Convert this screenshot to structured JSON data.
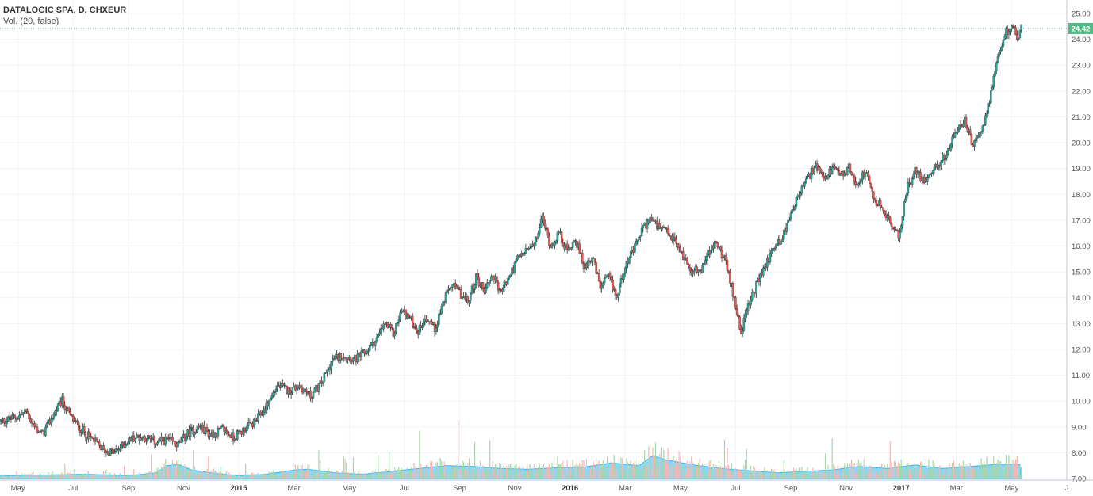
{
  "legend": {
    "title": "DATALOGIC SPA, D, CHXEUR",
    "volume": "Vol. (20, false)"
  },
  "colors": {
    "up": "#26a69a",
    "down": "#ef5350",
    "wick": "#333333",
    "grid": "#f0f3fa",
    "price_line": "#53b987",
    "vol_up": "#a5d6a7",
    "vol_down": "#f5b7b1",
    "vol_avg": "#29b6f6",
    "axis_text": "#555555"
  },
  "chart_data": {
    "type": "candlestick",
    "title": "DATALOGIC SPA, D, CHXEUR",
    "symbol": "DATALOGIC SPA",
    "interval": "D",
    "currency": "CHXEUR",
    "last_price": "24.42",
    "ylim": [
      7.0,
      25.0
    ],
    "y_ticks": [
      "7.00",
      "8.00",
      "9.00",
      "10.00",
      "11.00",
      "12.00",
      "13.00",
      "14.00",
      "15.00",
      "16.00",
      "17.00",
      "18.00",
      "19.00",
      "20.00",
      "21.00",
      "22.00",
      "23.00",
      "24.00",
      "25.00"
    ],
    "x_ticks": [
      {
        "label": "May",
        "t": 0.0
      },
      {
        "label": "Jul",
        "t": 2.0
      },
      {
        "label": "Sep",
        "t": 4.0
      },
      {
        "label": "Nov",
        "t": 6.0
      },
      {
        "label": "2015",
        "t": 8.0,
        "bold": true
      },
      {
        "label": "Mar",
        "t": 10.0
      },
      {
        "label": "May",
        "t": 12.0
      },
      {
        "label": "Jul",
        "t": 14.0
      },
      {
        "label": "Sep",
        "t": 16.0
      },
      {
        "label": "Nov",
        "t": 18.0
      },
      {
        "label": "2016",
        "t": 20.0,
        "bold": true
      },
      {
        "label": "Mar",
        "t": 22.0
      },
      {
        "label": "May",
        "t": 24.0
      },
      {
        "label": "Jul",
        "t": 26.0
      },
      {
        "label": "Sep",
        "t": 28.0
      },
      {
        "label": "Nov",
        "t": 30.0
      },
      {
        "label": "2017",
        "t": 32.0,
        "bold": true
      },
      {
        "label": "Mar",
        "t": 34.0
      },
      {
        "label": "May",
        "t": 36.0
      },
      {
        "label": "J",
        "t": 38.0
      }
    ],
    "x_range_months": [
      -0.65,
      38.0
    ],
    "price_path": [
      [
        -0.65,
        9.2
      ],
      [
        0.0,
        9.4
      ],
      [
        0.3,
        9.6
      ],
      [
        0.6,
        9.0
      ],
      [
        0.9,
        8.7
      ],
      [
        1.3,
        9.5
      ],
      [
        1.6,
        10.0
      ],
      [
        1.9,
        9.4
      ],
      [
        2.2,
        9.0
      ],
      [
        2.5,
        8.7
      ],
      [
        2.8,
        8.4
      ],
      [
        3.1,
        8.1
      ],
      [
        3.5,
        8.0
      ],
      [
        3.8,
        8.3
      ],
      [
        4.2,
        8.6
      ],
      [
        4.6,
        8.6
      ],
      [
        5.0,
        8.4
      ],
      [
        5.4,
        8.5
      ],
      [
        5.8,
        8.3
      ],
      [
        6.2,
        8.8
      ],
      [
        6.6,
        9.0
      ],
      [
        7.0,
        8.7
      ],
      [
        7.4,
        8.9
      ],
      [
        7.8,
        8.6
      ],
      [
        8.2,
        8.9
      ],
      [
        8.6,
        9.2
      ],
      [
        9.0,
        9.8
      ],
      [
        9.4,
        10.6
      ],
      [
        9.8,
        10.4
      ],
      [
        10.2,
        10.6
      ],
      [
        10.6,
        10.2
      ],
      [
        11.0,
        10.7
      ],
      [
        11.4,
        11.6
      ],
      [
        11.8,
        11.8
      ],
      [
        12.2,
        11.6
      ],
      [
        12.6,
        11.9
      ],
      [
        13.0,
        12.4
      ],
      [
        13.3,
        13.0
      ],
      [
        13.6,
        12.6
      ],
      [
        13.9,
        13.5
      ],
      [
        14.2,
        13.2
      ],
      [
        14.5,
        12.7
      ],
      [
        14.8,
        13.3
      ],
      [
        15.1,
        12.8
      ],
      [
        15.4,
        13.8
      ],
      [
        15.7,
        14.5
      ],
      [
        16.0,
        14.2
      ],
      [
        16.3,
        13.8
      ],
      [
        16.6,
        14.8
      ],
      [
        16.9,
        14.3
      ],
      [
        17.2,
        14.9
      ],
      [
        17.5,
        14.2
      ],
      [
        17.8,
        14.8
      ],
      [
        18.1,
        15.5
      ],
      [
        18.4,
        15.8
      ],
      [
        18.7,
        16.0
      ],
      [
        19.0,
        17.1
      ],
      [
        19.3,
        16.0
      ],
      [
        19.6,
        16.5
      ],
      [
        19.9,
        15.8
      ],
      [
        20.2,
        16.3
      ],
      [
        20.5,
        15.2
      ],
      [
        20.8,
        15.6
      ],
      [
        21.1,
        14.4
      ],
      [
        21.4,
        14.8
      ],
      [
        21.7,
        14.0
      ],
      [
        22.0,
        15.3
      ],
      [
        22.3,
        15.8
      ],
      [
        22.6,
        16.6
      ],
      [
        22.9,
        17.1
      ],
      [
        23.2,
        16.7
      ],
      [
        23.5,
        16.5
      ],
      [
        23.8,
        16.2
      ],
      [
        24.1,
        15.6
      ],
      [
        24.4,
        15.1
      ],
      [
        24.7,
        15.0
      ],
      [
        25.0,
        15.7
      ],
      [
        25.3,
        16.1
      ],
      [
        25.6,
        15.5
      ],
      [
        25.9,
        14.2
      ],
      [
        26.2,
        12.7
      ],
      [
        26.5,
        13.8
      ],
      [
        26.8,
        14.6
      ],
      [
        27.1,
        15.3
      ],
      [
        27.4,
        16.0
      ],
      [
        27.7,
        16.3
      ],
      [
        28.0,
        17.3
      ],
      [
        28.3,
        18.0
      ],
      [
        28.6,
        18.6
      ],
      [
        28.9,
        19.1
      ],
      [
        29.2,
        18.5
      ],
      [
        29.5,
        19.0
      ],
      [
        29.8,
        18.7
      ],
      [
        30.1,
        19.0
      ],
      [
        30.4,
        18.4
      ],
      [
        30.7,
        18.9
      ],
      [
        31.0,
        17.8
      ],
      [
        31.3,
        17.5
      ],
      [
        31.6,
        16.9
      ],
      [
        31.9,
        16.3
      ],
      [
        32.2,
        18.2
      ],
      [
        32.5,
        18.9
      ],
      [
        32.8,
        18.5
      ],
      [
        33.1,
        18.9
      ],
      [
        33.4,
        19.2
      ],
      [
        33.7,
        19.7
      ],
      [
        34.0,
        20.4
      ],
      [
        34.3,
        20.9
      ],
      [
        34.6,
        19.8
      ],
      [
        34.9,
        20.5
      ],
      [
        35.2,
        21.6
      ],
      [
        35.5,
        23.2
      ],
      [
        35.8,
        24.3
      ],
      [
        36.0,
        24.5
      ],
      [
        36.2,
        24.1
      ],
      [
        36.35,
        24.42
      ]
    ],
    "volume_avg_path": [
      [
        -0.65,
        0.2
      ],
      [
        1.0,
        0.25
      ],
      [
        2.5,
        0.3
      ],
      [
        4.0,
        0.2
      ],
      [
        5.0,
        0.4
      ],
      [
        5.4,
        0.9
      ],
      [
        5.8,
        1.0
      ],
      [
        6.3,
        0.6
      ],
      [
        7.0,
        0.4
      ],
      [
        8.0,
        0.2
      ],
      [
        9.0,
        0.3
      ],
      [
        10.0,
        0.6
      ],
      [
        10.5,
        0.65
      ],
      [
        11.5,
        0.4
      ],
      [
        12.5,
        0.3
      ],
      [
        13.5,
        0.5
      ],
      [
        14.5,
        0.7
      ],
      [
        15.5,
        0.9
      ],
      [
        16.5,
        0.85
      ],
      [
        17.5,
        0.7
      ],
      [
        18.5,
        0.65
      ],
      [
        19.5,
        0.75
      ],
      [
        20.5,
        0.8
      ],
      [
        21.5,
        1.1
      ],
      [
        22.5,
        0.9
      ],
      [
        23.0,
        1.6
      ],
      [
        23.5,
        1.3
      ],
      [
        24.5,
        0.95
      ],
      [
        25.5,
        0.7
      ],
      [
        26.5,
        0.55
      ],
      [
        27.5,
        0.4
      ],
      [
        28.5,
        0.5
      ],
      [
        29.5,
        0.6
      ],
      [
        30.5,
        0.85
      ],
      [
        31.5,
        0.7
      ],
      [
        32.5,
        0.95
      ],
      [
        33.5,
        0.7
      ],
      [
        34.5,
        0.85
      ],
      [
        35.5,
        1.0
      ],
      [
        36.35,
        1.0
      ]
    ]
  }
}
